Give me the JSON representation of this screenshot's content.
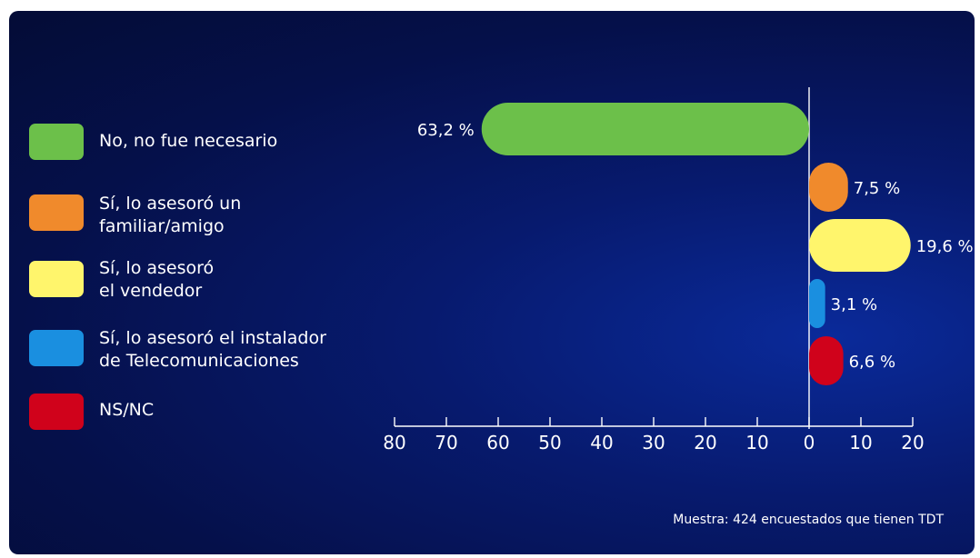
{
  "chart_data": {
    "type": "bar",
    "orientation": "horizontal",
    "categories": [
      "No, no fue necesario",
      "Sí, lo asesoró un\nfamiliar/amigo",
      "Sí, lo asesoró\nel vendedor",
      "Sí, lo asesoró el instalador\nde Telecomunicaciones",
      "NS/NC"
    ],
    "values": [
      63.2,
      7.5,
      19.6,
      3.1,
      6.6
    ],
    "value_labels": [
      "63,2 %",
      "7,5 %",
      "19,6 %",
      "3,1 %",
      "6,6 %"
    ],
    "colors": [
      "#6cc04a",
      "#f08a2c",
      "#fff56c",
      "#1a8fe0",
      "#d0021b"
    ],
    "direction": [
      "left",
      "right",
      "right",
      "right",
      "right"
    ],
    "xlim_left": [
      0,
      80
    ],
    "xlim_right": [
      0,
      20
    ],
    "x_ticks": [
      "80",
      "70",
      "60",
      "50",
      "40",
      "30",
      "20",
      "10",
      "0",
      "10",
      "20"
    ],
    "legend_position": "left",
    "grid": false
  },
  "footnote": "Muestra: 424 encuestados que tienen TDT"
}
